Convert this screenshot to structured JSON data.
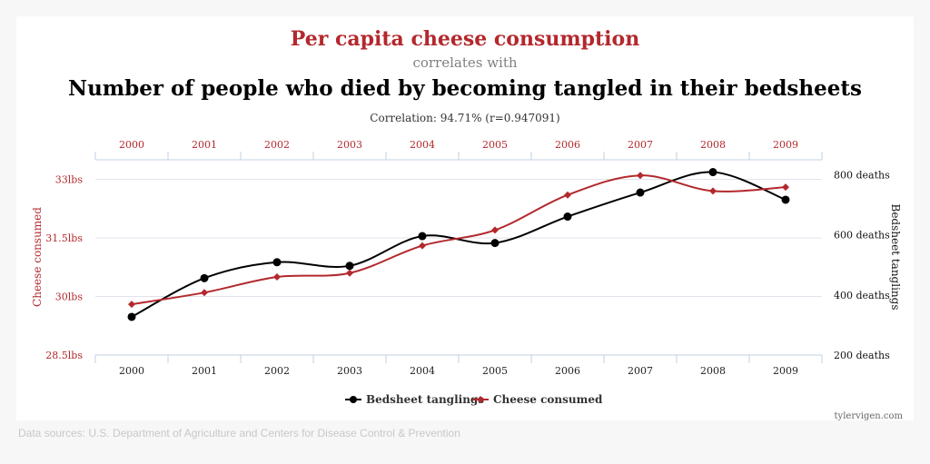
{
  "page": {
    "title_main": "Per capita cheese consumption",
    "title_mid": "correlates with",
    "title_sub": "Number of people who died by becoming tangled in their bedsheets",
    "correlation": "Correlation: 94.71% (r=0.947091)",
    "watermark": "tylervigen.com",
    "sources": "Data sources: U.S. Department of Agriculture and Centers for Disease Control & Prevention"
  },
  "colors": {
    "cheese": "#b3282d",
    "bedsheet": "#000000",
    "grid": "#dfe3ea",
    "axis": "#c0d0e0"
  },
  "chart_data": {
    "type": "line",
    "categories": [
      "2000",
      "2001",
      "2002",
      "2003",
      "2004",
      "2005",
      "2006",
      "2007",
      "2008",
      "2009"
    ],
    "series": [
      {
        "name": "Bedsheet tanglings",
        "axis": "right",
        "values": [
          327,
          456,
          509,
          497,
          596,
          573,
          661,
          741,
          809,
          717
        ]
      },
      {
        "name": "Cheese consumed",
        "axis": "left",
        "values": [
          29.8,
          30.1,
          30.5,
          30.6,
          31.3,
          31.7,
          32.6,
          33.1,
          32.7,
          32.8
        ]
      }
    ],
    "left_axis": {
      "label": "Cheese consumed",
      "ylim": [
        28.5,
        33.5
      ],
      "ticks": [
        28.5,
        30,
        31.5,
        33
      ],
      "tick_labels": [
        "28.5lbs",
        "30lbs",
        "31.5lbs",
        "33lbs"
      ]
    },
    "right_axis": {
      "label": "Bedsheet tanglings",
      "ylim": [
        200,
        850
      ],
      "ticks": [
        200,
        400,
        600,
        800
      ],
      "tick_labels": [
        "200 deaths",
        "400 deaths",
        "600 deaths",
        "800 deaths"
      ]
    },
    "grid": true,
    "legend_position": "bottom-center"
  }
}
